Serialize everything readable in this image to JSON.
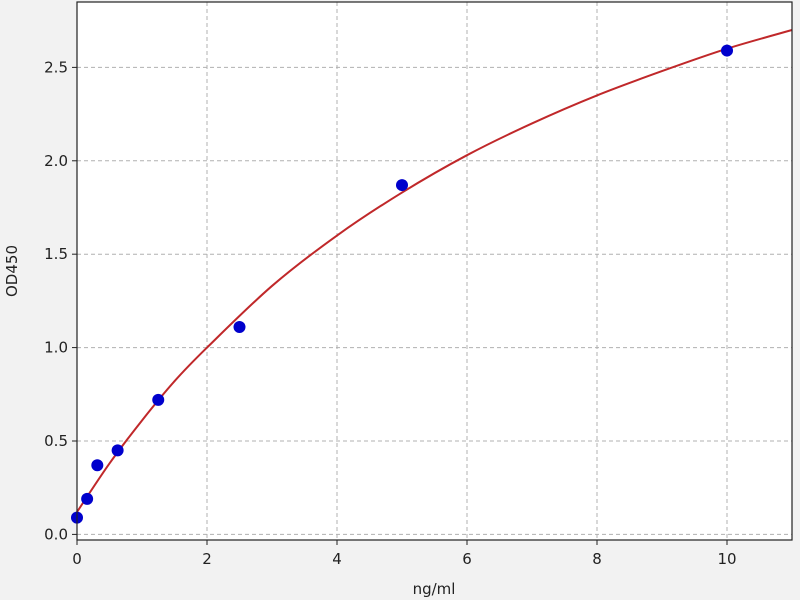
{
  "chart_data": {
    "type": "scatter",
    "title": "",
    "xlabel": "ng/ml",
    "ylabel": "OD450",
    "xlim": [
      0,
      11
    ],
    "ylim": [
      -0.03,
      2.85
    ],
    "xticks": [
      0,
      2,
      4,
      6,
      8,
      10
    ],
    "xtick_labels": [
      "0",
      "2",
      "4",
      "6",
      "8",
      "10"
    ],
    "yticks": [
      0.0,
      0.5,
      1.0,
      1.5,
      2.0,
      2.5
    ],
    "ytick_labels": [
      "0.0",
      "0.5",
      "1.0",
      "1.5",
      "2.0",
      "2.5"
    ],
    "grid": true,
    "series": [
      {
        "type": "scatter",
        "x": [
          0,
          0.156,
          0.3125,
          0.625,
          1.25,
          2.5,
          5,
          10
        ],
        "y": [
          0.09,
          0.19,
          0.37,
          0.45,
          0.72,
          1.11,
          1.87,
          2.59
        ],
        "color": "#0000cc"
      },
      {
        "type": "line",
        "x": [
          0,
          0.5,
          1,
          1.5,
          2,
          3,
          4,
          5,
          6,
          7,
          8,
          9,
          10,
          11
        ],
        "y": [
          0.12,
          0.38,
          0.61,
          0.82,
          1.0,
          1.33,
          1.6,
          1.83,
          2.03,
          2.2,
          2.35,
          2.48,
          2.6,
          2.7
        ],
        "color": "#c0282a"
      }
    ]
  }
}
